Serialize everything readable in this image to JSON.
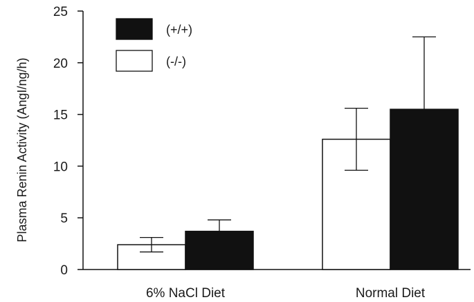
{
  "chart_data": {
    "type": "bar",
    "title": "",
    "ylabel": "Plasma Renin Activity (AngI/ng/h)",
    "xlabel": "",
    "ylim": [
      0,
      25
    ],
    "yticks": [
      0,
      5,
      10,
      15,
      20,
      25
    ],
    "categories": [
      "6% NaCl Diet",
      "Normal Diet"
    ],
    "series": [
      {
        "name": "(-/-)",
        "color": "#ffffff",
        "values": [
          2.4,
          12.6
        ],
        "errors": [
          0.7,
          3.0
        ]
      },
      {
        "name": "(+/+)",
        "color": "#111111",
        "values": [
          3.7,
          15.5
        ],
        "errors": [
          1.1,
          7.0
        ]
      }
    ],
    "error_bars": "upper and lower for (-/-); upper only for (+/+)",
    "legend": {
      "position": "top-left",
      "entries": [
        {
          "label": "(+/+)",
          "color": "#111111"
        },
        {
          "label": "(-/-)",
          "color": "#ffffff"
        }
      ]
    },
    "grid": false
  }
}
